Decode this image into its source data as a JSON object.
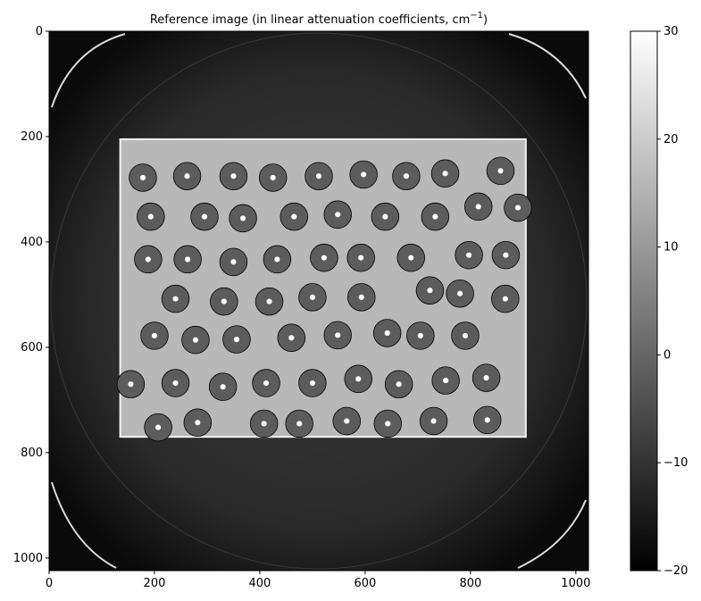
{
  "chart_data": {
    "type": "heatmap",
    "title": "Reference image (in linear attenuation coefficients, cm",
    "title_superscript": "−1",
    "title_close": ")",
    "image_size": [
      1024,
      1024
    ],
    "xlim": [
      0,
      1024
    ],
    "ylim": [
      1024,
      0
    ],
    "x_ticks": [
      0,
      200,
      400,
      600,
      800,
      1000
    ],
    "y_ticks": [
      0,
      200,
      400,
      600,
      800,
      1000
    ],
    "x_tick_labels": [
      "0",
      "200",
      "400",
      "600",
      "800",
      "1000"
    ],
    "y_tick_labels": [
      "0",
      "200",
      "400",
      "600",
      "800",
      "1000"
    ],
    "colormap": "gray",
    "colorbar": {
      "range": [
        -20,
        30
      ],
      "ticks": [
        30,
        20,
        10,
        0,
        -10,
        -20
      ],
      "tick_labels": [
        "30",
        "20",
        "10",
        "0",
        "−10",
        "−20"
      ]
    },
    "sample_region": {
      "x": [
        135,
        905
      ],
      "y": [
        205,
        770
      ]
    },
    "sample_value": 16,
    "background_value": -16,
    "pellets": [
      [
        178,
        278
      ],
      [
        262,
        275
      ],
      [
        350,
        275
      ],
      [
        425,
        278
      ],
      [
        512,
        275
      ],
      [
        597,
        272
      ],
      [
        678,
        275
      ],
      [
        752,
        270
      ],
      [
        857,
        265
      ],
      [
        193,
        352
      ],
      [
        295,
        352
      ],
      [
        368,
        355
      ],
      [
        465,
        352
      ],
      [
        548,
        348
      ],
      [
        638,
        352
      ],
      [
        733,
        352
      ],
      [
        815,
        333
      ],
      [
        890,
        335
      ],
      [
        188,
        433
      ],
      [
        263,
        433
      ],
      [
        350,
        438
      ],
      [
        433,
        433
      ],
      [
        522,
        430
      ],
      [
        592,
        430
      ],
      [
        687,
        430
      ],
      [
        797,
        425
      ],
      [
        867,
        425
      ],
      [
        240,
        508
      ],
      [
        332,
        513
      ],
      [
        418,
        513
      ],
      [
        500,
        505
      ],
      [
        593,
        505
      ],
      [
        723,
        492
      ],
      [
        780,
        498
      ],
      [
        866,
        508
      ],
      [
        200,
        578
      ],
      [
        278,
        586
      ],
      [
        356,
        585
      ],
      [
        460,
        582
      ],
      [
        548,
        577
      ],
      [
        642,
        573
      ],
      [
        705,
        578
      ],
      [
        790,
        578
      ],
      [
        155,
        670
      ],
      [
        240,
        668
      ],
      [
        330,
        675
      ],
      [
        412,
        668
      ],
      [
        500,
        668
      ],
      [
        587,
        660
      ],
      [
        664,
        670
      ],
      [
        753,
        663
      ],
      [
        830,
        658
      ],
      [
        207,
        752
      ],
      [
        282,
        743
      ],
      [
        408,
        745
      ],
      [
        475,
        745
      ],
      [
        565,
        740
      ],
      [
        643,
        745
      ],
      [
        730,
        740
      ],
      [
        832,
        738
      ]
    ],
    "pellet_radius": 26
  }
}
